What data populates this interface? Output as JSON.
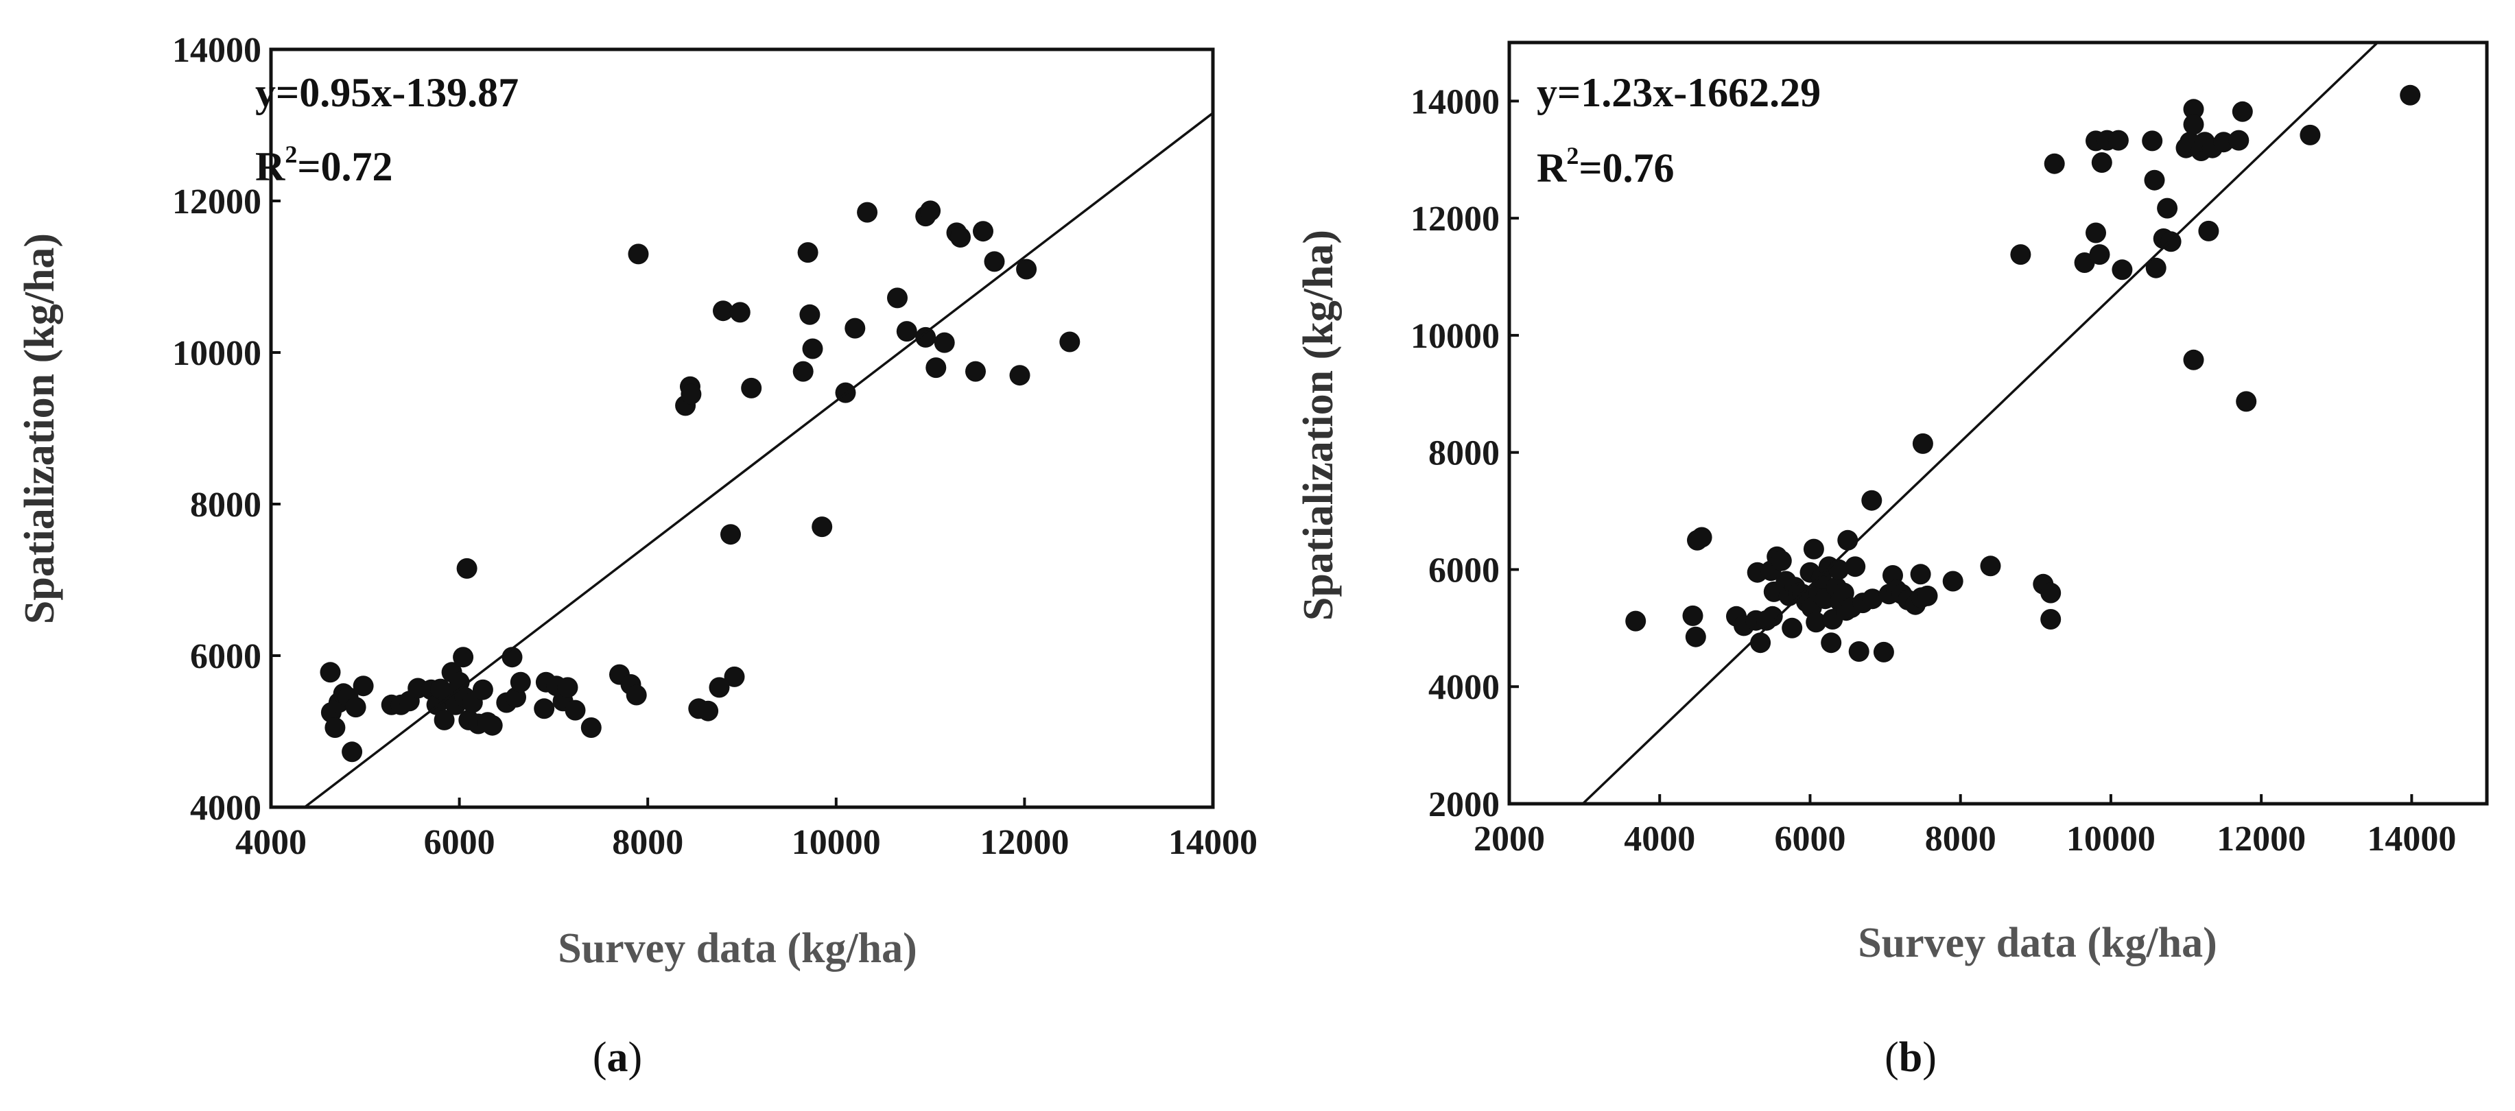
{
  "colors": {
    "points": "#111111",
    "axes": "#111111",
    "background": "#ffffff"
  },
  "chart_data": [
    {
      "type": "scatter",
      "panel_label": "a",
      "equation": "y=0.95x-139.87",
      "r2_prefix": "R",
      "r2_sup": "2",
      "r2_value": "=0.72",
      "xlabel": "Survey data (kg/ha)",
      "ylabel": "Spatialization (kg/ha)",
      "xlim": [
        4000,
        14000
      ],
      "ylim": [
        4000,
        14000
      ],
      "xticks": [
        4000,
        6000,
        8000,
        10000,
        12000,
        14000
      ],
      "yticks": [
        4000,
        6000,
        8000,
        10000,
        12000,
        14000
      ],
      "xtick_labels": [
        "4000",
        "6000",
        "8000",
        "10000",
        "12000",
        "14000"
      ],
      "ytick_labels": [
        "4000",
        "6000",
        "8000",
        "10000",
        "12000",
        "14000"
      ],
      "fit": {
        "slope": 0.95,
        "intercept": -139.87
      },
      "points": [
        [
          4630,
          5780
        ],
        [
          4640,
          5250
        ],
        [
          4680,
          5050
        ],
        [
          4720,
          5380
        ],
        [
          4770,
          5500
        ],
        [
          4820,
          5450
        ],
        [
          4860,
          4730
        ],
        [
          4900,
          5320
        ],
        [
          4980,
          5600
        ],
        [
          5280,
          5350
        ],
        [
          5380,
          5350
        ],
        [
          5470,
          5400
        ],
        [
          5560,
          5570
        ],
        [
          5700,
          5550
        ],
        [
          5760,
          5350
        ],
        [
          5800,
          5560
        ],
        [
          5840,
          5150
        ],
        [
          5880,
          5500
        ],
        [
          5920,
          5780
        ],
        [
          5960,
          5350
        ],
        [
          6000,
          5650
        ],
        [
          6040,
          5980
        ],
        [
          6060,
          5450
        ],
        [
          6080,
          7150
        ],
        [
          6100,
          5150
        ],
        [
          6140,
          5380
        ],
        [
          6200,
          5100
        ],
        [
          6250,
          5550
        ],
        [
          6300,
          5120
        ],
        [
          6350,
          5080
        ],
        [
          6500,
          5380
        ],
        [
          6560,
          5980
        ],
        [
          6600,
          5450
        ],
        [
          6650,
          5650
        ],
        [
          6900,
          5300
        ],
        [
          6920,
          5650
        ],
        [
          7030,
          5600
        ],
        [
          7100,
          5400
        ],
        [
          7150,
          5580
        ],
        [
          7230,
          5280
        ],
        [
          7400,
          5050
        ],
        [
          7700,
          5750
        ],
        [
          7820,
          5620
        ],
        [
          7880,
          5480
        ],
        [
          7900,
          11300
        ],
        [
          8400,
          9300
        ],
        [
          8450,
          9550
        ],
        [
          8460,
          9450
        ],
        [
          8540,
          5300
        ],
        [
          8640,
          5270
        ],
        [
          8760,
          5580
        ],
        [
          8800,
          10550
        ],
        [
          8880,
          7600
        ],
        [
          8920,
          5720
        ],
        [
          8980,
          10530
        ],
        [
          9100,
          9530
        ],
        [
          9650,
          9750
        ],
        [
          9700,
          11320
        ],
        [
          9720,
          10500
        ],
        [
          9750,
          10050
        ],
        [
          9850,
          7700
        ],
        [
          10100,
          9470
        ],
        [
          10200,
          10320
        ],
        [
          10330,
          11850
        ],
        [
          10650,
          10720
        ],
        [
          10750,
          10280
        ],
        [
          10950,
          10200
        ],
        [
          10950,
          11800
        ],
        [
          11000,
          11870
        ],
        [
          11060,
          9800
        ],
        [
          11150,
          10130
        ],
        [
          11280,
          11580
        ],
        [
          11320,
          11520
        ],
        [
          11480,
          9750
        ],
        [
          11560,
          11600
        ],
        [
          11680,
          11200
        ],
        [
          11950,
          9700
        ],
        [
          12020,
          11100
        ],
        [
          12480,
          10140
        ]
      ]
    },
    {
      "type": "scatter",
      "panel_label": "b",
      "equation": "y=1.23x-1662.29",
      "r2_prefix": "R",
      "r2_sup": "2",
      "r2_value": "=0.76",
      "xlabel": "Survey data (kg/ha)",
      "ylabel": "Spatialization (kg/ha)",
      "xlim": [
        2000,
        15000
      ],
      "ylim": [
        2000,
        15000
      ],
      "xticks": [
        2000,
        4000,
        6000,
        8000,
        10000,
        12000,
        14000
      ],
      "yticks": [
        2000,
        4000,
        6000,
        8000,
        10000,
        12000,
        14000
      ],
      "xtick_labels": [
        "2000",
        "4000",
        "6000",
        "8000",
        "10000",
        "12000",
        "14000"
      ],
      "ytick_labels": [
        "2000",
        "4000",
        "6000",
        "8000",
        "10000",
        "12000",
        "14000"
      ],
      "fit": {
        "slope": 1.23,
        "intercept": -1662.29
      },
      "points": [
        [
          3680,
          5120
        ],
        [
          4440,
          5210
        ],
        [
          4480,
          4850
        ],
        [
          4500,
          6500
        ],
        [
          4560,
          6550
        ],
        [
          5020,
          5200
        ],
        [
          5120,
          5040
        ],
        [
          5280,
          5130
        ],
        [
          5300,
          5950
        ],
        [
          5340,
          4750
        ],
        [
          5420,
          5130
        ],
        [
          5480,
          5980
        ],
        [
          5500,
          5200
        ],
        [
          5520,
          5620
        ],
        [
          5560,
          6220
        ],
        [
          5620,
          6150
        ],
        [
          5680,
          5800
        ],
        [
          5720,
          5550
        ],
        [
          5760,
          5000
        ],
        [
          5800,
          5700
        ],
        [
          5850,
          5600
        ],
        [
          5900,
          5580
        ],
        [
          5950,
          5450
        ],
        [
          6000,
          5950
        ],
        [
          6020,
          5350
        ],
        [
          6050,
          6350
        ],
        [
          6080,
          5100
        ],
        [
          6120,
          5600
        ],
        [
          6150,
          5850
        ],
        [
          6200,
          5500
        ],
        [
          6250,
          6050
        ],
        [
          6280,
          4750
        ],
        [
          6300,
          5150
        ],
        [
          6350,
          5700
        ],
        [
          6380,
          6000
        ],
        [
          6400,
          5450
        ],
        [
          6450,
          5600
        ],
        [
          6480,
          5300
        ],
        [
          6500,
          6500
        ],
        [
          6550,
          5350
        ],
        [
          6600,
          6050
        ],
        [
          6650,
          4600
        ],
        [
          6700,
          5430
        ],
        [
          6820,
          7180
        ],
        [
          6830,
          5500
        ],
        [
          6980,
          4590
        ],
        [
          7050,
          5580
        ],
        [
          7100,
          5900
        ],
        [
          7150,
          5650
        ],
        [
          7220,
          5580
        ],
        [
          7300,
          5480
        ],
        [
          7400,
          5400
        ],
        [
          7480,
          5520
        ],
        [
          7470,
          5920
        ],
        [
          7500,
          8150
        ],
        [
          7560,
          5550
        ],
        [
          7900,
          5800
        ],
        [
          8400,
          6060
        ],
        [
          8800,
          11380
        ],
        [
          9100,
          5750
        ],
        [
          9200,
          5600
        ],
        [
          9200,
          5150
        ],
        [
          9250,
          12930
        ],
        [
          9650,
          11240
        ],
        [
          9800,
          11750
        ],
        [
          9800,
          13320
        ],
        [
          9850,
          11380
        ],
        [
          9880,
          12950
        ],
        [
          9950,
          13330
        ],
        [
          10100,
          13330
        ],
        [
          10150,
          11120
        ],
        [
          10550,
          13320
        ],
        [
          10580,
          12650
        ],
        [
          10600,
          11150
        ],
        [
          10700,
          11650
        ],
        [
          10750,
          12170
        ],
        [
          10800,
          11600
        ],
        [
          11000,
          13200
        ],
        [
          11050,
          13300
        ],
        [
          11100,
          13860
        ],
        [
          11100,
          9580
        ],
        [
          11100,
          13600
        ],
        [
          11200,
          13150
        ],
        [
          11250,
          13300
        ],
        [
          11300,
          11780
        ],
        [
          11350,
          13200
        ],
        [
          11500,
          13300
        ],
        [
          11700,
          13330
        ],
        [
          11750,
          13820
        ],
        [
          11800,
          8870
        ],
        [
          12650,
          13420
        ],
        [
          13980,
          14100
        ]
      ]
    }
  ]
}
